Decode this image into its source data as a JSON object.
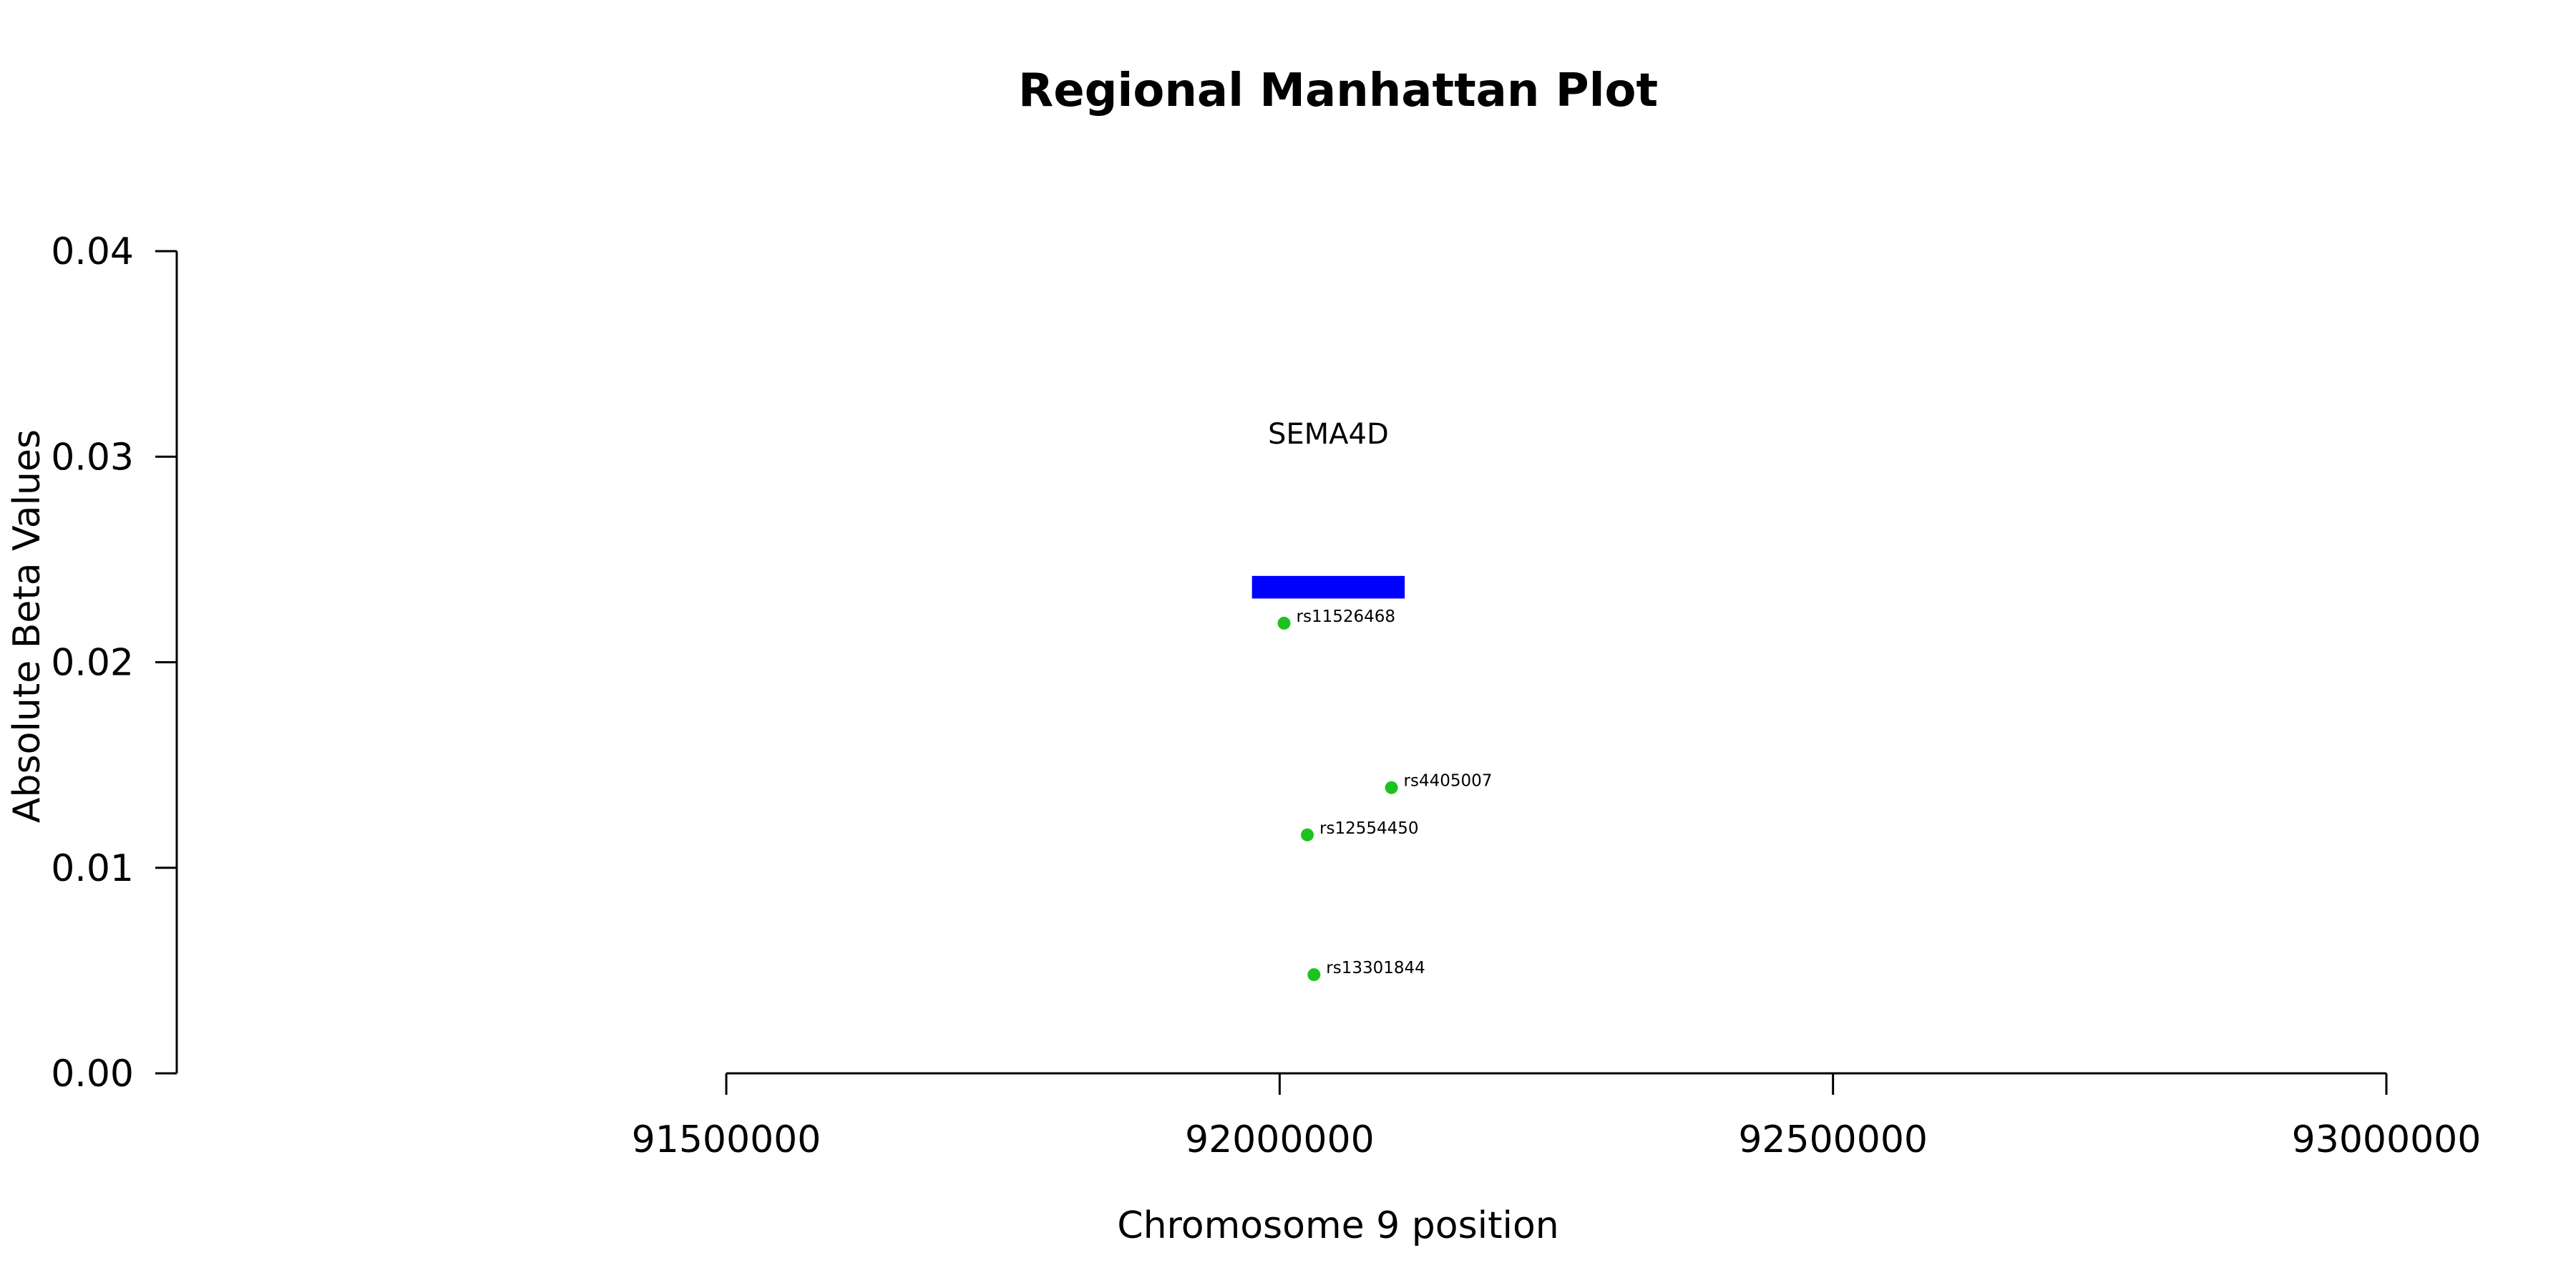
{
  "chart_data": {
    "type": "scatter",
    "title": "Regional Manhattan Plot",
    "xlabel": "Chromosome 9 position",
    "ylabel": "Absolute Beta Values",
    "xlim": [
      91500000,
      93000000
    ],
    "ylim": [
      0,
      0.04
    ],
    "x_ticks": [
      91500000,
      92000000,
      92500000,
      93000000
    ],
    "x_tick_labels": [
      "91500000",
      "92000000",
      "92500000",
      "93000000"
    ],
    "y_ticks": [
      0,
      0.01,
      0.02,
      0.03,
      0.04
    ],
    "y_tick_labels": [
      "0.00",
      "0.01",
      "0.02",
      "0.03",
      "0.04"
    ],
    "grid": false,
    "point_color": "#1ec21e",
    "points": [
      {
        "label": "rs11526468",
        "x": 92004000,
        "y": 0.0219
      },
      {
        "label": "rs4405007",
        "x": 92101000,
        "y": 0.0139
      },
      {
        "label": "rs12554450",
        "x": 92025000,
        "y": 0.0116
      },
      {
        "label": "rs13301844",
        "x": 92031000,
        "y": 0.0048
      }
    ],
    "genes": [
      {
        "name": "SEMA4D",
        "start": 91975000,
        "end": 92113000,
        "y_low": 0.0231,
        "y_high": 0.0242,
        "color": "#0000ff"
      }
    ]
  }
}
